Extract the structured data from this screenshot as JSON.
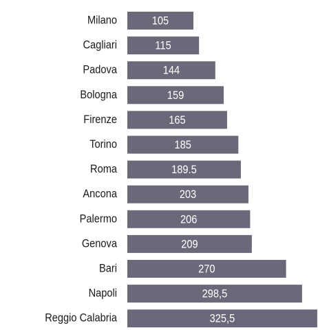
{
  "chart_data": {
    "type": "bar",
    "orientation": "horizontal",
    "categories": [
      "Milano",
      "Cagliari",
      "Padova",
      "Bologna",
      "Firenze",
      "Torino",
      "Roma",
      "Ancona",
      "Palermo",
      "Genova",
      "Bari",
      "Napoli",
      "Reggio Calabria"
    ],
    "values": [
      105,
      115,
      144,
      159,
      165,
      185,
      189.5,
      203,
      206,
      209,
      270,
      298.5,
      325.5
    ],
    "value_labels": [
      "105",
      "115",
      "144",
      "159",
      "165",
      "185",
      "189.5",
      "203",
      "206",
      "209",
      "270",
      "298,5",
      "325,5"
    ],
    "color": "#6b6979"
  }
}
